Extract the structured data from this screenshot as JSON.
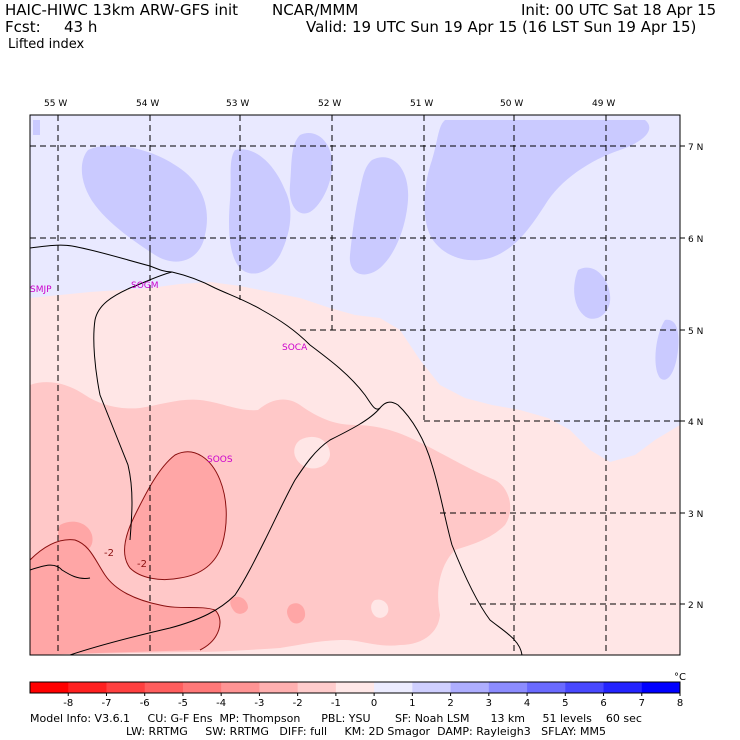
{
  "header": {
    "model_title": "HAIC-HIWC 13km ARW-GFS init",
    "org": "NCAR/MMM",
    "init": "Init: 00 UTC Sat 18 Apr 15",
    "fcst_label": "Fcst:",
    "fcst_value": "43 h",
    "valid": "Valid: 19 UTC Sun 19 Apr 15 (16 LST Sun 19 Apr 15)",
    "field": "Lifted index"
  },
  "map": {
    "lon_labels": [
      "55 W",
      "54 W",
      "53 W",
      "52 W",
      "51 W",
      "50 W",
      "49 W"
    ],
    "lat_labels": [
      "7 N",
      "6 N",
      "5 N",
      "4 N",
      "3 N",
      "2 N"
    ],
    "stations": [
      "SMJP",
      "SOGM",
      "SOCA",
      "SOOS"
    ],
    "contour_labels": [
      "-2",
      "-2"
    ],
    "colors": {
      "neg1": "#ffe6e6",
      "neg2": "#ffc8c8",
      "neg3": "#ffa6a6",
      "neg4": "#ff8585",
      "pos1": "#e9e9ff",
      "pos2": "#cacaff",
      "station": "#cc00cc"
    }
  },
  "colorbar": {
    "ticks": [
      "-8",
      "-7",
      "-6",
      "-5",
      "-4",
      "-3",
      "-2",
      "-1",
      "0",
      "1",
      "2",
      "3",
      "4",
      "5",
      "6",
      "7",
      "8"
    ],
    "unit": "°C",
    "colors": [
      "#ff0000",
      "#ff2020",
      "#ff4040",
      "#ff5e5e",
      "#ff7878",
      "#ff9494",
      "#ffb0b0",
      "#ffcccc",
      "#ffe8e8",
      "#ececff",
      "#cfcfff",
      "#aeaeff",
      "#8c8cff",
      "#6a6aff",
      "#4848ff",
      "#2424ff",
      "#0000ff"
    ]
  },
  "footer": {
    "line1": "Model Info: V3.6.1     CU: G-F Ens  MP: Thompson      PBL: YSU       SF: Noah LSM      13 km     51 levels    60 sec",
    "line2": "LW: RRTMG     SW: RRTMG   DIFF: full     KM: 2D Smagor  DAMP: Rayleigh3   SFLAY: MM5"
  }
}
